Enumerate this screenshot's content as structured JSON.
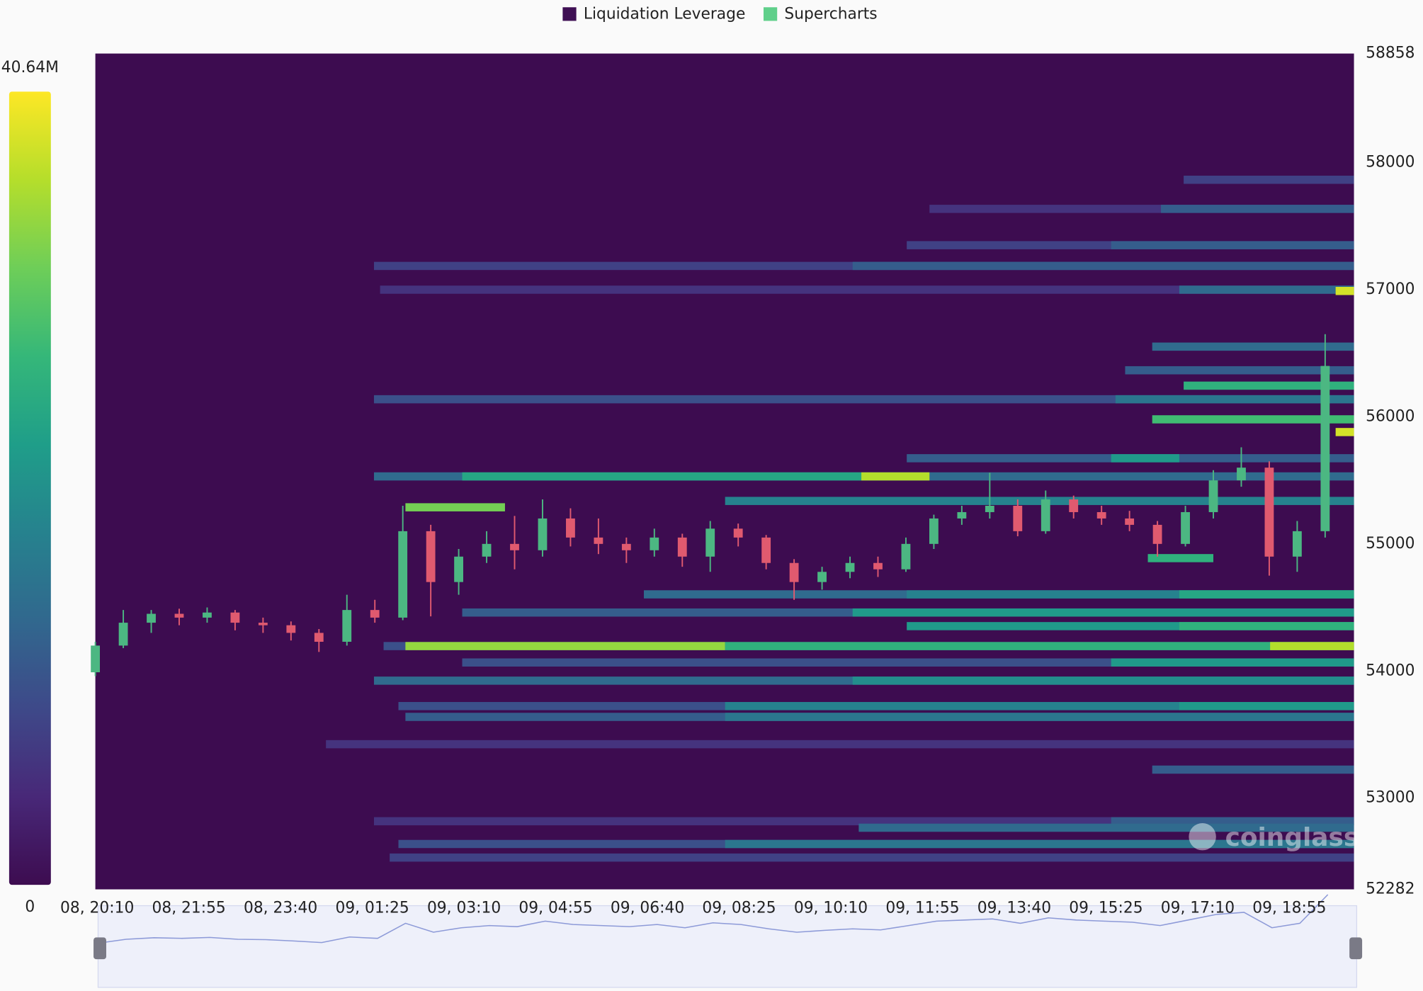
{
  "chart_data": {
    "type": "heatmap",
    "legend": [
      {
        "name": "Liquidation Leverage",
        "color": "#3f0f54"
      },
      {
        "name": "Supercharts",
        "color": "#5fcf8a"
      }
    ],
    "watermark": "coinglass",
    "colormap": [
      "#3d0c50",
      "#482878",
      "#3e4989",
      "#31688e",
      "#26828e",
      "#1f9e89",
      "#35b779",
      "#6ece58",
      "#b5de2b",
      "#fde725"
    ],
    "clim": [
      0,
      40.64
    ],
    "cticks": [
      0,
      {
        "value": 40.64,
        "label": "40.64M"
      }
    ],
    "xlim": [
      0,
      1441
    ],
    "xticks": [
      {
        "value": 0,
        "label": "08, 20:10"
      },
      {
        "value": 105,
        "label": "08, 21:55"
      },
      {
        "value": 210,
        "label": "08, 23:40"
      },
      {
        "value": 315,
        "label": "09, 01:25"
      },
      {
        "value": 420,
        "label": "09, 03:10"
      },
      {
        "value": 525,
        "label": "09, 04:55"
      },
      {
        "value": 630,
        "label": "09, 06:40"
      },
      {
        "value": 735,
        "label": "09, 08:25"
      },
      {
        "value": 840,
        "label": "09, 10:10"
      },
      {
        "value": 945,
        "label": "09, 11:55"
      },
      {
        "value": 1050,
        "label": "09, 13:40"
      },
      {
        "value": 1155,
        "label": "09, 15:25"
      },
      {
        "value": 1260,
        "label": "09, 17:10"
      },
      {
        "value": 1365,
        "label": "09, 18:55"
      }
    ],
    "ylim": [
      52282,
      58858
    ],
    "yticks": [
      52282,
      53000,
      54000,
      55000,
      56000,
      57000,
      58000,
      58858
    ],
    "bands": [
      {
        "price": 57187,
        "x0": 319,
        "x1": 1441,
        "value": 8
      },
      {
        "price": 57187,
        "x0": 867,
        "x1": 1441,
        "value": 12
      },
      {
        "price": 57000,
        "x0": 326,
        "x1": 1441,
        "value": 6
      },
      {
        "price": 57000,
        "x0": 1241,
        "x1": 1441,
        "value": 14
      },
      {
        "price": 56138,
        "x0": 319,
        "x1": 1441,
        "value": 10
      },
      {
        "price": 56138,
        "x0": 1168,
        "x1": 1441,
        "value": 16
      },
      {
        "price": 55980,
        "x0": 1210,
        "x1": 1441,
        "value": 28
      },
      {
        "price": 56245,
        "x0": 1246,
        "x1": 1441,
        "value": 26
      },
      {
        "price": 55531,
        "x0": 319,
        "x1": 1441,
        "value": 14
      },
      {
        "price": 55531,
        "x0": 420,
        "x1": 877,
        "value": 24
      },
      {
        "price": 55531,
        "x0": 877,
        "x1": 955,
        "value": 36
      },
      {
        "price": 55674,
        "x0": 929,
        "x1": 1441,
        "value": 12
      },
      {
        "price": 55674,
        "x0": 1163,
        "x1": 1241,
        "value": 22
      },
      {
        "price": 55338,
        "x0": 721,
        "x1": 1441,
        "value": 18
      },
      {
        "price": 55288,
        "x0": 355,
        "x1": 469,
        "value": 32
      },
      {
        "price": 54888,
        "x0": 1205,
        "x1": 1280,
        "value": 26
      },
      {
        "price": 54603,
        "x0": 628,
        "x1": 1441,
        "value": 14
      },
      {
        "price": 54603,
        "x0": 929,
        "x1": 1441,
        "value": 18
      },
      {
        "price": 54603,
        "x0": 1241,
        "x1": 1441,
        "value": 24
      },
      {
        "price": 54460,
        "x0": 420,
        "x1": 1441,
        "value": 12
      },
      {
        "price": 54460,
        "x0": 867,
        "x1": 1441,
        "value": 22
      },
      {
        "price": 54353,
        "x0": 929,
        "x1": 1441,
        "value": 22
      },
      {
        "price": 54353,
        "x0": 1241,
        "x1": 1441,
        "value": 26
      },
      {
        "price": 54196,
        "x0": 330,
        "x1": 1441,
        "value": 10
      },
      {
        "price": 54196,
        "x0": 355,
        "x1": 721,
        "value": 34
      },
      {
        "price": 54196,
        "x0": 721,
        "x1": 1441,
        "value": 26
      },
      {
        "price": 54196,
        "x0": 1345,
        "x1": 1441,
        "value": 36
      },
      {
        "price": 54067,
        "x0": 420,
        "x1": 1441,
        "value": 10
      },
      {
        "price": 54067,
        "x0": 1163,
        "x1": 1441,
        "value": 22
      },
      {
        "price": 53924,
        "x0": 319,
        "x1": 1441,
        "value": 14
      },
      {
        "price": 53924,
        "x0": 867,
        "x1": 1441,
        "value": 20
      },
      {
        "price": 53724,
        "x0": 347,
        "x1": 1441,
        "value": 10
      },
      {
        "price": 53724,
        "x0": 721,
        "x1": 1441,
        "value": 18
      },
      {
        "price": 53724,
        "x0": 1241,
        "x1": 1441,
        "value": 22
      },
      {
        "price": 53639,
        "x0": 355,
        "x1": 1441,
        "value": 12
      },
      {
        "price": 53639,
        "x0": 721,
        "x1": 1441,
        "value": 16
      },
      {
        "price": 52818,
        "x0": 319,
        "x1": 1441,
        "value": 6
      },
      {
        "price": 52818,
        "x0": 1163,
        "x1": 1441,
        "value": 12
      },
      {
        "price": 52767,
        "x0": 874,
        "x1": 1441,
        "value": 14
      },
      {
        "price": 52639,
        "x0": 347,
        "x1": 1441,
        "value": 10
      },
      {
        "price": 52639,
        "x0": 721,
        "x1": 1441,
        "value": 16
      },
      {
        "price": 52532,
        "x0": 337,
        "x1": 1441,
        "value": 8
      },
      {
        "price": 57865,
        "x0": 1246,
        "x1": 1441,
        "value": 8
      },
      {
        "price": 57636,
        "x0": 955,
        "x1": 1441,
        "value": 6
      },
      {
        "price": 57636,
        "x0": 1220,
        "x1": 1441,
        "value": 12
      },
      {
        "price": 57350,
        "x0": 929,
        "x1": 1441,
        "value": 8
      },
      {
        "price": 57350,
        "x0": 1163,
        "x1": 1441,
        "value": 12
      },
      {
        "price": 56552,
        "x0": 1210,
        "x1": 1441,
        "value": 14
      },
      {
        "price": 56366,
        "x0": 1179,
        "x1": 1441,
        "value": 12
      },
      {
        "price": 53224,
        "x0": 1210,
        "x1": 1441,
        "value": 12
      },
      {
        "price": 53424,
        "x0": 264,
        "x1": 1441,
        "value": 6
      },
      {
        "price": 56990,
        "x0": 1420,
        "x1": 1441,
        "value": 38
      },
      {
        "price": 55880,
        "x0": 1420,
        "x1": 1441,
        "value": 38
      }
    ],
    "candles": {
      "up_color": "#4cb782",
      "down_color": "#e05a6f",
      "x": [
        0,
        32,
        64,
        96,
        128,
        160,
        192,
        224,
        256,
        288,
        320,
        352,
        384,
        416,
        448,
        480,
        512,
        544,
        576,
        608,
        640,
        672,
        704,
        736,
        768,
        800,
        832,
        864,
        896,
        928,
        960,
        992,
        1024,
        1056,
        1088,
        1120,
        1152,
        1184,
        1216,
        1248,
        1280,
        1312,
        1344,
        1376,
        1408
      ],
      "open": [
        53990,
        54200,
        54380,
        54450,
        54420,
        54460,
        54380,
        54360,
        54300,
        54230,
        54480,
        54420,
        55100,
        54700,
        54900,
        55000,
        54950,
        55200,
        55050,
        55000,
        54950,
        55050,
        54900,
        55120,
        55050,
        54850,
        54700,
        54780,
        54850,
        54800,
        55000,
        55200,
        55250,
        55300,
        55100,
        55350,
        55250,
        55200,
        55150,
        55000,
        55250,
        55500,
        55600,
        54900,
        55100
      ],
      "high": [
        54230,
        54480,
        54480,
        54490,
        54500,
        54480,
        54420,
        54390,
        54330,
        54600,
        54560,
        55300,
        55150,
        54960,
        55100,
        55220,
        55350,
        55280,
        55200,
        55050,
        55120,
        55080,
        55180,
        55160,
        55070,
        54880,
        54820,
        54900,
        54900,
        55050,
        55230,
        55300,
        55560,
        55350,
        55420,
        55380,
        55300,
        55260,
        55180,
        55300,
        55580,
        55760,
        55650,
        55180,
        56650
      ],
      "low": [
        53960,
        54180,
        54300,
        54360,
        54380,
        54320,
        54300,
        54240,
        54150,
        54200,
        54380,
        54400,
        54430,
        54600,
        54850,
        54800,
        54900,
        54980,
        54920,
        54850,
        54900,
        54820,
        54780,
        54980,
        54800,
        54560,
        54640,
        54730,
        54740,
        54780,
        54960,
        55150,
        55200,
        55060,
        55080,
        55200,
        55150,
        55100,
        54900,
        54980,
        55200,
        55450,
        54750,
        54780,
        55050
      ],
      "close": [
        54200,
        54380,
        54450,
        54420,
        54460,
        54380,
        54360,
        54300,
        54230,
        54480,
        54420,
        55100,
        54700,
        54900,
        55000,
        54950,
        55200,
        55050,
        55000,
        54950,
        55050,
        54900,
        55120,
        55050,
        54850,
        54700,
        54780,
        54850,
        54800,
        55000,
        55200,
        55250,
        55300,
        55100,
        55350,
        55250,
        55200,
        55150,
        55000,
        55250,
        55500,
        55600,
        54900,
        55100,
        56400
      ]
    }
  }
}
